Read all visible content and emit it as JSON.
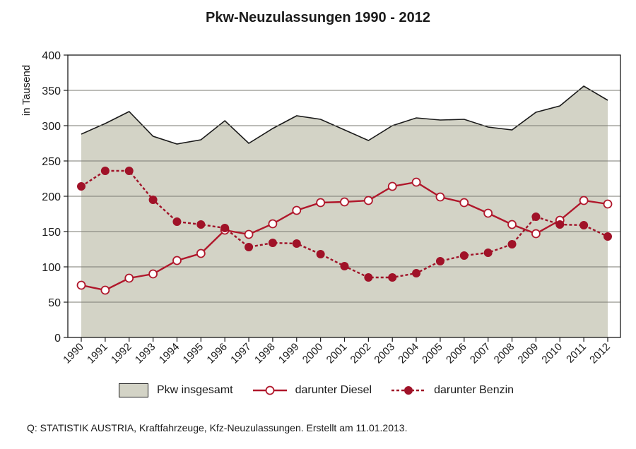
{
  "chart_data": {
    "type": "line",
    "title": "Pkw-Neuzulassungen 1990 - 2012",
    "ylabel": "in Tausend",
    "xlabel": "",
    "ylim": [
      0,
      400
    ],
    "yticks": [
      "0",
      "50",
      "100",
      "150",
      "200",
      "250",
      "300",
      "350",
      "400"
    ],
    "categories": [
      "1990",
      "1991",
      "1992",
      "1993",
      "1994",
      "1995",
      "1996",
      "1997",
      "1998",
      "1999",
      "2000",
      "2001",
      "2002",
      "2003",
      "2004",
      "2005",
      "2006",
      "2007",
      "2008",
      "2009",
      "2010",
      "2011",
      "2012"
    ],
    "grid": "horizontal",
    "legend_position": "bottom",
    "series": [
      {
        "name": "Pkw insgesamt",
        "style": "area",
        "color": "#d3d3c6",
        "values": [
          288,
          303,
          320,
          285,
          274,
          280,
          307,
          275,
          296,
          314,
          309,
          294,
          279,
          300,
          311,
          308,
          309,
          298,
          294,
          319,
          328,
          356,
          336
        ]
      },
      {
        "name": "darunter Diesel",
        "style": "line-open-markers",
        "color": "#b0172b",
        "values": [
          74,
          67,
          84,
          90,
          109,
          119,
          152,
          146,
          161,
          180,
          191,
          192,
          194,
          214,
          220,
          199,
          191,
          176,
          160,
          147,
          166,
          194,
          189
        ]
      },
      {
        "name": "darunter Benzin",
        "style": "dashed-filled-markers",
        "color": "#a01228",
        "values": [
          214,
          236,
          236,
          195,
          164,
          160,
          155,
          128,
          134,
          133,
          118,
          101,
          85,
          85,
          91,
          108,
          116,
          120,
          132,
          171,
          160,
          159,
          143
        ]
      }
    ]
  },
  "footer": {
    "source": "Q: STATISTIK AUSTRIA, Kraftfahrzeuge, Kfz-Neuzulassungen. Erstellt am 11.01.2013."
  }
}
